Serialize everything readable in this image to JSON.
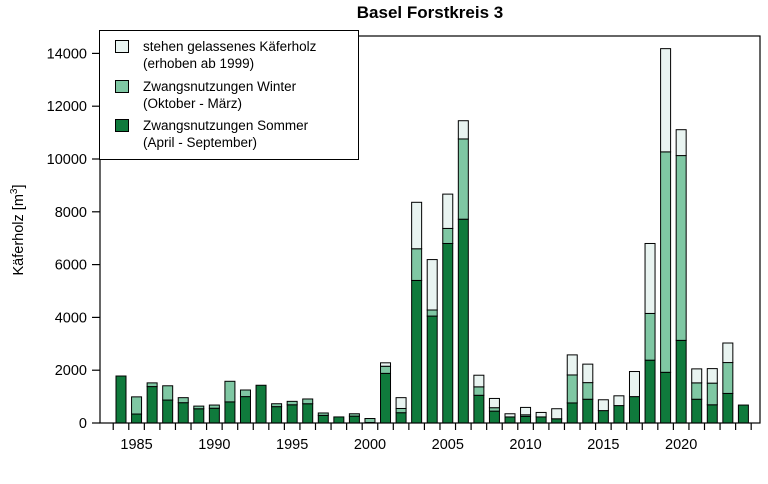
{
  "title": "Basel Forstkreis 3",
  "ylabel": "Käferholz [m³]",
  "ylabel_parts": {
    "pre": "Käferholz [m",
    "sup": "3",
    "post": "]"
  },
  "legend": {
    "items": [
      {
        "id": "standing",
        "label_line1": "stehen gelassenes Käferholz",
        "label_line2": "(erhoben ab 1999)",
        "color": "#e9f4f1"
      },
      {
        "id": "winter",
        "label_line1": "Zwangsnutzungen Winter",
        "label_line2": "(Oktober - März)",
        "color": "#7fc7a3"
      },
      {
        "id": "summer",
        "label_line1": "Zwangsnutzungen Sommer",
        "label_line2": "(April - September)",
        "color": "#0f7a3c"
      }
    ]
  },
  "colors": {
    "summer": "#0f7a3c",
    "winter": "#7fc7a3",
    "standing": "#e9f4f1",
    "bar_border": "#000000",
    "axis": "#000000",
    "background": "#ffffff"
  },
  "chart_data": {
    "type": "bar",
    "stacked": true,
    "title": "Basel Forstkreis 3",
    "xlabel": "",
    "ylabel": "Käferholz [m³]",
    "ylim": [
      0,
      14600
    ],
    "y_ticks": [
      0,
      2000,
      4000,
      6000,
      8000,
      10000,
      12000,
      14000
    ],
    "x_tick_labels": [
      1985,
      1990,
      1995,
      2000,
      2005,
      2010,
      2015,
      2020
    ],
    "grid": false,
    "legend_position": "top-left",
    "categories": [
      1984,
      1985,
      1986,
      1987,
      1988,
      1989,
      1990,
      1991,
      1992,
      1993,
      1994,
      1995,
      1996,
      1997,
      1998,
      1999,
      2000,
      2001,
      2002,
      2003,
      2004,
      2005,
      2006,
      2007,
      2008,
      2009,
      2010,
      2011,
      2012,
      2013,
      2014,
      2015,
      2016,
      2017,
      2018,
      2019,
      2020,
      2021,
      2022,
      2023,
      2024
    ],
    "series": [
      {
        "name": "Zwangsnutzungen Sommer (April - September)",
        "color": "#0f7a3c",
        "values": [
          1780,
          340,
          1380,
          870,
          770,
          540,
          560,
          800,
          1000,
          1430,
          620,
          690,
          730,
          290,
          230,
          260,
          20,
          1880,
          390,
          5400,
          4050,
          6800,
          7720,
          1050,
          450,
          230,
          250,
          230,
          160,
          760,
          900,
          470,
          660,
          1000,
          2380,
          1920,
          3130,
          900,
          690,
          1120,
          680
        ]
      },
      {
        "name": "Zwangsnutzungen Winter (Oktober - März)",
        "color": "#7fc7a3",
        "values": [
          0,
          650,
          140,
          540,
          190,
          100,
          120,
          780,
          250,
          0,
          110,
          130,
          180,
          90,
          0,
          90,
          150,
          270,
          160,
          1200,
          230,
          570,
          3040,
          320,
          130,
          0,
          60,
          0,
          0,
          1060,
          630,
          0,
          0,
          0,
          1770,
          8350,
          7000,
          620,
          820,
          1170,
          0
        ]
      },
      {
        "name": "stehen gelassenes Käferholz (erhoben ab 1999)",
        "color": "#e9f4f1",
        "values": [
          0,
          0,
          0,
          0,
          0,
          0,
          0,
          0,
          0,
          0,
          0,
          0,
          0,
          0,
          0,
          0,
          0,
          130,
          410,
          1760,
          1910,
          1300,
          690,
          440,
          350,
          120,
          280,
          170,
          380,
          760,
          700,
          410,
          370,
          950,
          2650,
          3910,
          980,
          530,
          550,
          740,
          0
        ]
      }
    ]
  }
}
